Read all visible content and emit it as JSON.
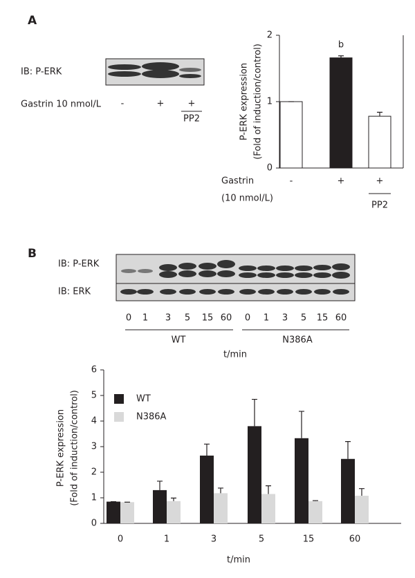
{
  "panel_labels": [
    "A",
    "B"
  ],
  "blot_a": {
    "rows": [
      "IB: P-ERK"
    ],
    "treatment": "Gastrin 10 nmol/L",
    "lanes": [
      "-",
      "+",
      "+"
    ],
    "lane_notes": [
      null,
      null,
      "PP2"
    ]
  },
  "blot_b": {
    "rows": [
      "IB: P-ERK",
      "IB: ERK"
    ],
    "lanes": [
      "0",
      "1",
      "3",
      "5",
      "15",
      "60",
      "0",
      "1",
      "3",
      "5",
      "15",
      "60"
    ],
    "groups": [
      "WT",
      "N386A"
    ],
    "axis_label": "t/min"
  },
  "chart_data": [
    {
      "type": "bar",
      "y_label": [
        "P-ERK expression",
        "(Fold of induction/control)"
      ],
      "x_label": [
        "Gastrin",
        "(10 nmol/L)"
      ],
      "categories": [
        "-",
        "+",
        "+"
      ],
      "category_notes": [
        null,
        null,
        "PP2"
      ],
      "values": [
        1.0,
        1.66,
        0.78
      ],
      "errors": [
        0,
        0.03,
        0.06
      ],
      "colors": [
        "#ffffff",
        "#231f20",
        "#ffffff"
      ],
      "annotation": "b",
      "ylim": [
        0,
        2
      ],
      "yticks": [
        0,
        1,
        2
      ]
    },
    {
      "type": "bar",
      "y_label": [
        "P-ERK expression",
        "(Fold of induction/control)"
      ],
      "x_label": "t/min",
      "categories": [
        "0",
        "1",
        "3",
        "5",
        "15",
        "60"
      ],
      "series": [
        {
          "name": "WT",
          "color": "#231f20",
          "values": [
            0.85,
            1.3,
            2.65,
            3.8,
            3.33,
            2.52
          ],
          "errors": [
            0,
            0.35,
            0.45,
            1.05,
            1.05,
            0.68
          ]
        },
        {
          "name": "N386A",
          "color": "#d9d9d9",
          "values": [
            0.83,
            0.87,
            1.18,
            1.15,
            0.87,
            1.08
          ],
          "errors": [
            0,
            0.12,
            0.2,
            0.32,
            0.02,
            0.28
          ]
        }
      ],
      "ylim": [
        0,
        6
      ],
      "yticks": [
        0,
        1,
        2,
        3,
        4,
        5,
        6
      ]
    }
  ]
}
